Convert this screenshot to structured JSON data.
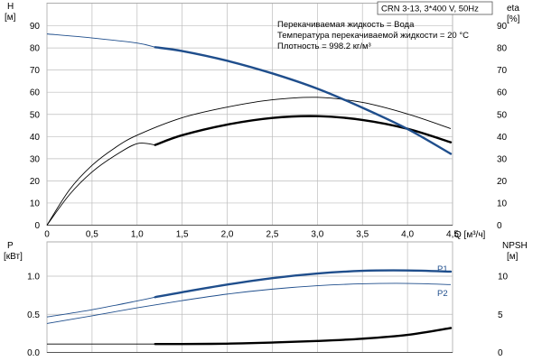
{
  "chart_data": [
    {
      "type": "line",
      "pump_label": "CRN 3-13, 3*400 V, 50Hz",
      "info_lines": [
        "Перекачиваемая жидкость = Вода",
        "Температура перекачиваемой жидкости = 20 °C",
        "Плотность = 998.2 кг/м³"
      ],
      "xlabel": "Q [м³/ч]",
      "ylabel_left": [
        "H",
        "[м]"
      ],
      "ylabel_right": [
        "eta",
        "[%]"
      ],
      "xlim": [
        0,
        4.5
      ],
      "ylim": [
        0,
        100
      ],
      "x_ticks": [
        "0",
        "0,5",
        "1,0",
        "1,5",
        "2,0",
        "2,5",
        "3,0",
        "3,5",
        "4,0",
        "4,5"
      ],
      "y_ticks_left": [
        "0",
        "10",
        "20",
        "30",
        "40",
        "50",
        "60",
        "70",
        "80",
        "90"
      ],
      "y_ticks_right": [
        "0",
        "10",
        "20",
        "30",
        "40",
        "50",
        "60",
        "70",
        "80",
        "90"
      ],
      "grid": true,
      "series": [
        {
          "role": "H",
          "color": "#1f4e8c",
          "points": [
            [
              0,
              86.3
            ],
            [
              0.5,
              84.5
            ],
            [
              1.0,
              82.2
            ],
            [
              1.2,
              80.3
            ],
            [
              1.5,
              78.6
            ],
            [
              2.0,
              74.2
            ],
            [
              2.5,
              68.5
            ],
            [
              3.0,
              61.6
            ],
            [
              3.5,
              53.0
            ],
            [
              4.0,
              43.4
            ],
            [
              4.48,
              32.2
            ]
          ],
          "bold_from": 1.2
        },
        {
          "role": "eta-pump",
          "color": "#000000",
          "points": [
            [
              0,
              0
            ],
            [
              0.25,
              16.0
            ],
            [
              0.5,
              27.0
            ],
            [
              0.75,
              34.8
            ],
            [
              1.0,
              40.6
            ],
            [
              1.5,
              48.5
            ],
            [
              2.0,
              53.3
            ],
            [
              2.5,
              56.6
            ],
            [
              3.0,
              57.7
            ],
            [
              3.5,
              55.4
            ],
            [
              4.0,
              50.2
            ],
            [
              4.48,
              43.6
            ]
          ]
        },
        {
          "role": "eta-total",
          "color": "#000000",
          "points": [
            [
              0,
              0
            ],
            [
              0.25,
              13.8
            ],
            [
              0.5,
              24.0
            ],
            [
              0.75,
              31.3
            ],
            [
              1.0,
              36.8
            ],
            [
              1.2,
              36.2
            ],
            [
              1.5,
              40.6
            ],
            [
              2.0,
              45.4
            ],
            [
              2.5,
              48.4
            ],
            [
              3.0,
              49.2
            ],
            [
              3.5,
              47.5
            ],
            [
              4.0,
              43.5
            ],
            [
              4.48,
              37.4
            ]
          ],
          "bold_from": 1.2
        }
      ]
    },
    {
      "type": "line",
      "ylabel_left": [
        "P",
        "[кВт]"
      ],
      "ylabel_right": [
        "NPSH",
        "[м]"
      ],
      "xlim": [
        0,
        4.5
      ],
      "ylim": [
        0,
        1.45
      ],
      "y_ticks_left": [
        "0.0",
        "0.5",
        "1.0"
      ],
      "y_ticks_right": [
        "0",
        "5",
        "10"
      ],
      "y2lim": [
        0,
        14.5
      ],
      "grid": true,
      "series": [
        {
          "name": "P1",
          "color": "#1f4e8c",
          "points": [
            [
              0,
              0.465
            ],
            [
              0.5,
              0.56
            ],
            [
              1.0,
              0.675
            ],
            [
              1.2,
              0.725
            ],
            [
              1.5,
              0.79
            ],
            [
              2.0,
              0.89
            ],
            [
              2.5,
              0.975
            ],
            [
              3.0,
              1.035
            ],
            [
              3.5,
              1.07
            ],
            [
              4.0,
              1.075
            ],
            [
              4.48,
              1.06
            ]
          ],
          "bold_from": 1.2
        },
        {
          "name": "P2",
          "color": "#1f4e8c",
          "points": [
            [
              0,
              0.38
            ],
            [
              0.5,
              0.48
            ],
            [
              1.0,
              0.585
            ],
            [
              1.5,
              0.68
            ],
            [
              2.0,
              0.765
            ],
            [
              2.5,
              0.83
            ],
            [
              3.0,
              0.875
            ],
            [
              3.5,
              0.9
            ],
            [
              4.0,
              0.905
            ],
            [
              4.48,
              0.89
            ]
          ]
        },
        {
          "role": "NPSH",
          "color": "#000000",
          "axis": "right",
          "points": [
            [
              0,
              1.1
            ],
            [
              0.5,
              1.1
            ],
            [
              1.0,
              1.1
            ],
            [
              1.2,
              1.1
            ],
            [
              1.5,
              1.1
            ],
            [
              2.0,
              1.15
            ],
            [
              2.5,
              1.3
            ],
            [
              3.0,
              1.5
            ],
            [
              3.5,
              1.8
            ],
            [
              4.0,
              2.3
            ],
            [
              4.48,
              3.2
            ]
          ],
          "bold_from": 1.2
        }
      ]
    }
  ]
}
